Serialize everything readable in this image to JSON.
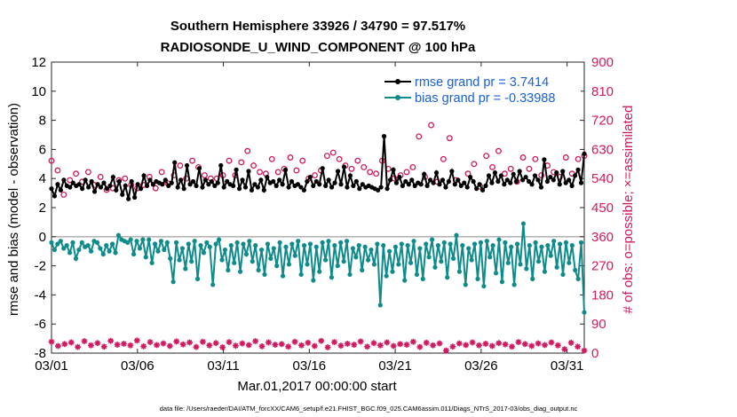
{
  "chart_data": {
    "type": "line",
    "title_line1": "Southern Hemisphere 33926 / 34790 = 97.517%",
    "title_line2": "RADIOSONDE_U_WIND_COMPONENT @ 100 hPa",
    "xlabel": "Mar.01,2017 00:00:00 start",
    "ylabel_left": "rmse and bias (model - observation)",
    "ylabel_right": "# of obs: o=possible; ×=assimilated",
    "footer": "data file: /Users/raeder/DAI/ATM_forcXX/CAM6_setup/f.e21.FHIST_BGC.f09_025.CAM6assim.011/Diags_NTrS_2017-03/obs_diag_output.nc",
    "xlim": [
      1,
      32
    ],
    "ylim_left": [
      -8,
      12
    ],
    "ylim_right": [
      0,
      900
    ],
    "x_ticks": [
      1,
      6,
      11,
      16,
      21,
      26,
      31
    ],
    "x_tick_labels": [
      "03/01",
      "03/06",
      "03/11",
      "03/16",
      "03/21",
      "03/26",
      "03/31"
    ],
    "y_left_ticks": [
      -8,
      -6,
      -4,
      -2,
      0,
      2,
      4,
      6,
      8,
      10,
      12
    ],
    "y_right_ticks": [
      0,
      90,
      180,
      270,
      360,
      450,
      540,
      630,
      720,
      810,
      900
    ],
    "colors": {
      "rmse": "#000000",
      "bias": "#0e8b8b",
      "obs": "#d11960",
      "zero_line": "#aaaaaa",
      "legend_text": "#1a5fd6"
    },
    "series": [
      {
        "name": "rmse grand pr = 3.7414",
        "axis": "left",
        "values": [
          3.3,
          2.8,
          3.6,
          3.2,
          3.9,
          3.5,
          3.4,
          3.7,
          3.5,
          3.6,
          3.3,
          3.9,
          3.4,
          3.8,
          3.1,
          3.6,
          3.4,
          3.7,
          3.3,
          3.5,
          4.1,
          3.2,
          3.8,
          2.9,
          3.5,
          2.6,
          3.8,
          2.7,
          3.6,
          3.3,
          4.2,
          3.5,
          3.9,
          3.6,
          3.8,
          3.7,
          3.6,
          3.9,
          3.5,
          3.7,
          5.1,
          3.4,
          3.9,
          3.3,
          4.9,
          3.6,
          3.8,
          3.5,
          4.7,
          3.4,
          3.9,
          3.6,
          3.8,
          3.5,
          3.7,
          4.9,
          3.4,
          3.8,
          3.6,
          3.5,
          4.6,
          3.3,
          3.9,
          3.4,
          4.5,
          3.2,
          3.6,
          3.4,
          3.9,
          3.2,
          4.1,
          3.7,
          3.8,
          3.5,
          3.9,
          3.6,
          4.6,
          3.4,
          3.8,
          3.5,
          3.6,
          3.4,
          3.2,
          3.8,
          4.1,
          3.5,
          3.8,
          3.6,
          4.7,
          3.5,
          3.9,
          3.4,
          3.7,
          4.5,
          3.6,
          4.8,
          3.4,
          4.2,
          3.5,
          3.8,
          3.3,
          3.6,
          3.4,
          3.5,
          3.4,
          3.3,
          3.2,
          3.4,
          6.9,
          3.3,
          3.9,
          4.6,
          3.7,
          4.1,
          3.5,
          3.8,
          3.6,
          3.9,
          3.5,
          3.7,
          3.6,
          4.3,
          3.5,
          3.9,
          3.7,
          4.4,
          3.6,
          3.9,
          3.4,
          3.8,
          4.5,
          3.6,
          3.9,
          3.5,
          3.7,
          3.4,
          4.1,
          3.8,
          3.3,
          3.6,
          3.2,
          3.5,
          4.2,
          3.7,
          4.4,
          3.8,
          4.2,
          3.6,
          3.9,
          3.7,
          4.3,
          3.8,
          4.5,
          3.9,
          4.1,
          3.8,
          3.6,
          4.2,
          3.9,
          3.4,
          5.3,
          3.8,
          4.1,
          3.9,
          4.4,
          3.6,
          4.5,
          3.7,
          3.9,
          3.5,
          4.2,
          4.6,
          3.7,
          5.7
        ]
      },
      {
        "name": "bias grand pr = -0.33988",
        "axis": "left",
        "values": [
          -0.4,
          -0.9,
          -0.5,
          -0.3,
          -0.8,
          -0.6,
          -1.1,
          -0.4,
          -1.5,
          -0.9,
          -0.4,
          -0.7,
          -0.6,
          -1.0,
          -0.3,
          -0.4,
          -0.8,
          -1.2,
          -0.6,
          -1.0,
          -0.5,
          -1.1,
          0.1,
          -0.2,
          -0.3,
          -0.4,
          -0.2,
          -1.2,
          -0.3,
          -0.8,
          -0.2,
          -1.4,
          -0.2,
          -1.8,
          -0.5,
          -1.0,
          -0.3,
          -0.9,
          -0.4,
          -1.5,
          -3.1,
          -0.4,
          -1.6,
          -0.8,
          -2.2,
          -0.5,
          -1.7,
          -0.3,
          -2.9,
          -0.6,
          -1.1,
          -0.4,
          -0.7,
          -3.3,
          -0.5,
          -0.2,
          -1.6,
          -0.9,
          -2.3,
          -0.6,
          -1.8,
          -0.4,
          -2.4,
          -0.5,
          -1.2,
          -0.3,
          -1.7,
          -0.6,
          -2.3,
          -0.9,
          -2.6,
          -0.5,
          -1.5,
          -0.8,
          -2.0,
          -0.4,
          -2.7,
          -0.7,
          -1.9,
          -0.5,
          -1.3,
          -0.3,
          -2.6,
          -0.6,
          -1.9,
          -0.5,
          -3.0,
          -0.7,
          -2.4,
          -0.4,
          -1.6,
          -0.3,
          -2.8,
          -0.6,
          -2.0,
          -0.4,
          -1.7,
          -0.3,
          -2.6,
          -0.8,
          -1.4,
          -0.6,
          -2.3,
          -0.7,
          -1.6,
          -0.9,
          -1.9,
          -0.5,
          -4.7,
          -0.6,
          -2.7,
          -1.0,
          -2.4,
          -0.7,
          -1.9,
          -0.5,
          -3.0,
          -0.6,
          -1.8,
          -0.3,
          -2.6,
          -0.8,
          -2.9,
          -0.5,
          -1.4,
          -0.2,
          -2.1,
          -0.6,
          -1.7,
          -0.4,
          -2.8,
          -0.5,
          -1.5,
          0.1,
          -2.4,
          -0.6,
          -3.3,
          -0.8,
          -1.6,
          -0.5,
          -2.9,
          -0.4,
          -3.4,
          -0.3,
          -1.4,
          -0.6,
          -2.5,
          -0.2,
          -3.1,
          -0.4,
          -1.8,
          -0.7,
          -3.3,
          -0.5,
          -1.9,
          0.9,
          -2.2,
          -0.6,
          -2.9,
          -0.4,
          -1.7,
          -0.7,
          -2.4,
          -0.6,
          -1.3,
          -0.3,
          -2.1,
          -0.5,
          -2.6,
          -0.4,
          -1.8,
          -0.6,
          -2.3,
          -2.9,
          -0.4,
          -5.2
        ]
      },
      {
        "name": "obs possible",
        "axis": "right",
        "values": [
          595,
          565,
          490,
          535,
          555,
          530,
          560,
          520,
          545,
          505,
          510,
          535,
          540,
          520,
          510,
          520,
          545,
          510,
          560,
          525,
          550,
          580,
          540,
          595,
          575,
          550,
          540,
          540,
          550,
          595,
          550,
          590,
          625,
          580,
          560,
          555,
          600,
          560,
          570,
          605,
          565,
          595,
          540,
          550,
          565,
          610,
          620,
          600,
          580,
          570,
          595,
          575,
          560,
          555,
          595,
          570,
          540,
          550,
          560,
          575,
          670,
          545,
          705,
          530,
          600,
          665,
          535,
          770,
          555,
          585,
          515,
          610,
          575,
          625,
          555,
          570,
          530,
          605,
          570,
          600,
          550,
          580,
          560,
          545,
          605,
          555,
          600,
          610
        ],
        "markers": "open circles"
      },
      {
        "name": "obs assimilated",
        "axis": "right",
        "values": [
          35,
          22,
          28,
          33,
          19,
          37,
          24,
          31,
          20,
          38,
          26,
          29,
          24,
          39,
          21,
          34,
          25,
          30,
          22,
          36,
          27,
          33,
          19,
          35,
          24,
          31,
          18,
          34,
          23,
          30,
          25,
          37,
          21,
          33,
          26,
          28,
          20,
          35,
          24,
          32,
          22,
          38,
          18,
          34,
          23,
          29,
          26,
          36,
          20,
          31,
          24,
          33,
          22,
          28,
          26,
          35,
          19,
          32,
          24,
          30,
          8,
          20,
          30,
          25,
          33,
          24,
          29,
          22,
          31,
          27,
          20,
          34,
          28,
          22,
          30,
          25,
          33,
          24,
          12,
          32,
          20,
          8
        ],
        "markers": "x (mostly low, plus mid-band cluster near possible values)"
      }
    ]
  }
}
